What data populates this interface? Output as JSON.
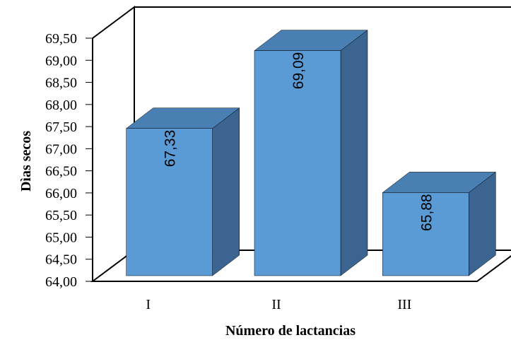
{
  "chart_data": {
    "type": "bar",
    "style": "3d-column",
    "categories": [
      "I",
      "II",
      "III"
    ],
    "values": [
      67.33,
      69.09,
      65.88
    ],
    "value_labels": [
      "67,33",
      "69,09",
      "65,88"
    ],
    "xlabel": "Número de lactancias",
    "ylabel": "Dìas secos",
    "ylim": [
      64,
      69.5
    ],
    "ytick_labels": [
      "64,00",
      "64,50",
      "65,00",
      "65,50",
      "66,00",
      "66,50",
      "67,00",
      "67,50",
      "68,00",
      "68,50",
      "69,00",
      "69,50"
    ],
    "grid": false,
    "legend": "none",
    "colors": {
      "front": "#5b9bd5",
      "top": "#4a7fb3",
      "side": "#3b6590",
      "outline": "#000000"
    }
  }
}
